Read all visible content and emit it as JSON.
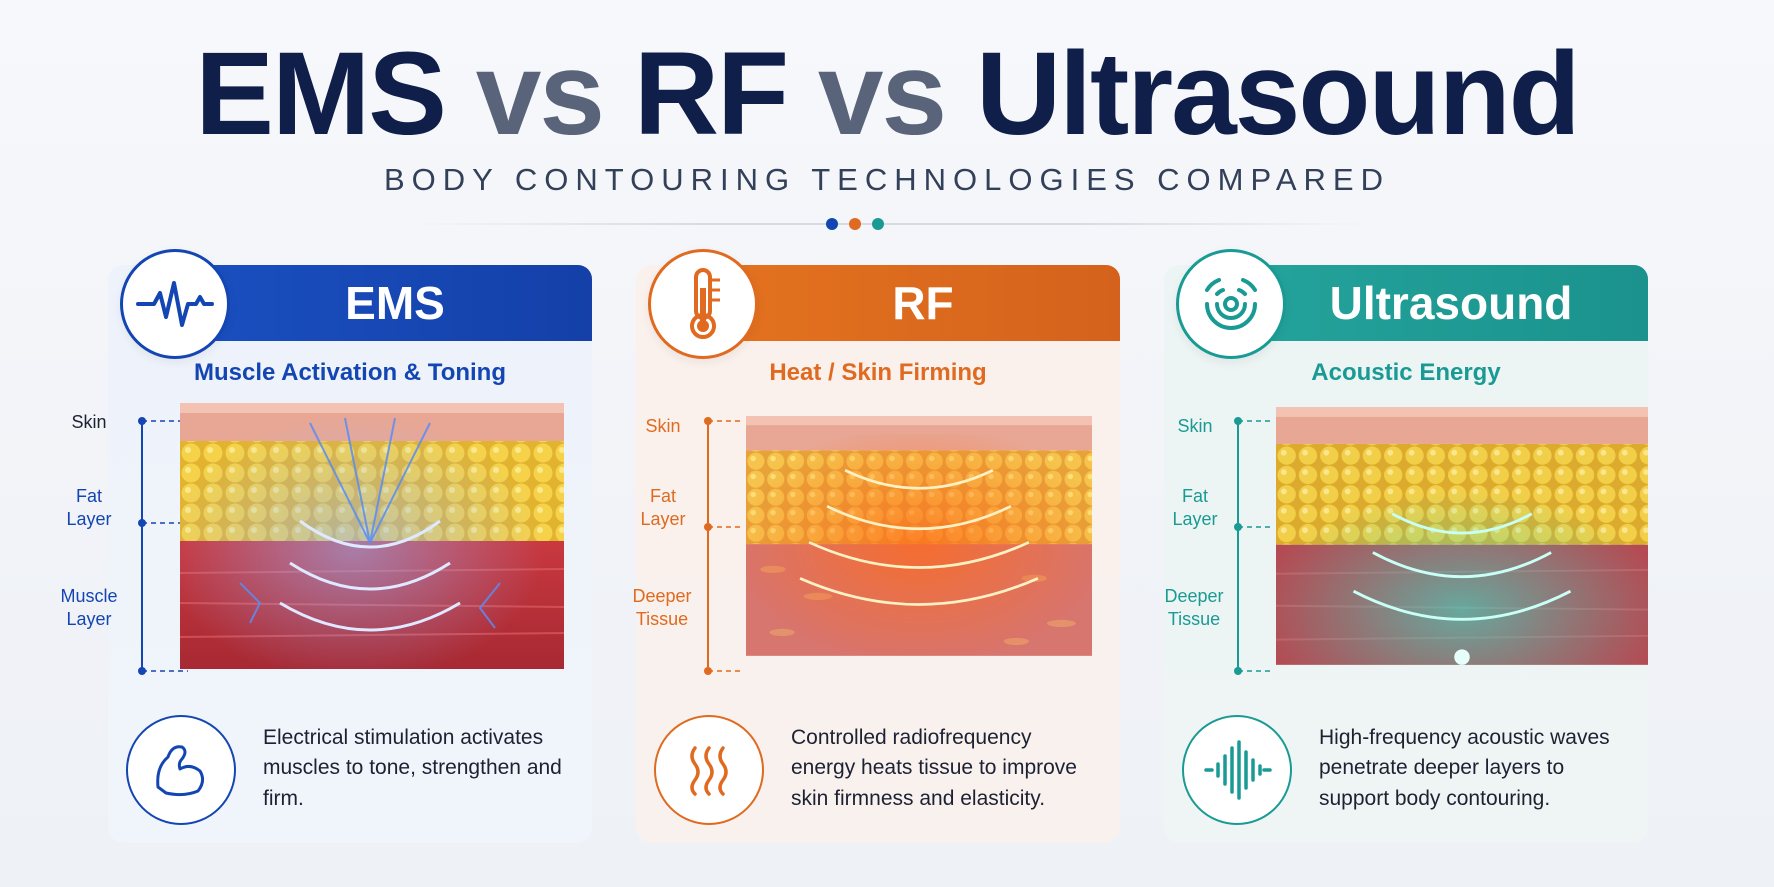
{
  "title": {
    "part1": "EMS",
    "vs1": "vs",
    "part2": "RF",
    "vs2": "vs",
    "part3": "Ultrasound"
  },
  "subtitle": "BODY CONTOURING TECHNOLOGIES COMPARED",
  "colors": {
    "ems": "#1446b3",
    "rf": "#e06a1f",
    "ultrasound": "#1a9a94",
    "title": "#0f1f4a"
  },
  "panels": {
    "ems": {
      "name": "EMS",
      "icon": "heartbeat-icon",
      "tagline": "Muscle Activation & Toning",
      "layers": [
        "Skin",
        "Fat Layer",
        "Muscle Layer"
      ],
      "desc_icon": "flexed-arm-icon",
      "description": "Electrical stimulation activates muscles to tone, strengthen and firm."
    },
    "rf": {
      "name": "RF",
      "icon": "thermometer-icon",
      "tagline": "Heat / Skin Firming",
      "layers": [
        "Skin",
        "Fat Layer",
        "Deeper Tissue"
      ],
      "desc_icon": "heat-waves-icon",
      "description": "Controlled radiofrequency energy heats tissue to improve skin firmness and elasticity."
    },
    "ultrasound": {
      "name": "Ultrasound",
      "icon": "sound-waves-icon",
      "tagline": "Acoustic Energy",
      "layers": [
        "Skin",
        "Fat Layer",
        "Deeper Tissue"
      ],
      "desc_icon": "waveform-icon",
      "description": "High-frequency acoustic waves penetrate deeper layers to support body contouring."
    }
  }
}
